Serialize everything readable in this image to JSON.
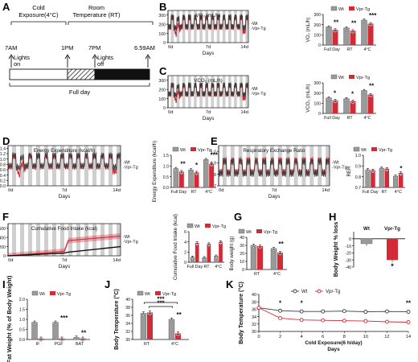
{
  "colors": {
    "wt": "#3b3b3b",
    "vpr": "#d42a36",
    "wt_bar": "#9a9a9a",
    "shade": "#cfcfcf"
  },
  "panel_letters": [
    "A",
    "B",
    "C",
    "D",
    "E",
    "F",
    "G",
    "H",
    "I",
    "J",
    "K"
  ],
  "schedule": {
    "header_cold": "Cold",
    "header_cold2": "Exposure(4°C)",
    "header_room": "Room",
    "header_room2": "Temperature  (RT)",
    "time_labels": [
      "7AM",
      "1PM",
      "7PM",
      "6.59AM"
    ],
    "lights_on": [
      "Lights",
      "on"
    ],
    "lights_off": [
      "Lights",
      "off"
    ],
    "full_day": "Full day"
  },
  "common": {
    "days_label": "Days",
    "day_ticks": [
      "0d",
      "7d",
      "14d"
    ],
    "legend_wt": "Wt",
    "legend_vpr": "Vpr-Tg",
    "trace_legend_wt": "-Wt",
    "trace_legend_vpr": "-Vpr-Tg"
  },
  "chart_data": [
    {
      "panel": "B",
      "type": "line",
      "title": "VO₂ (mL/h)",
      "xlabel": "Days",
      "x_ticks": [
        "0d",
        "7d",
        "14d"
      ],
      "y_ticks": [
        0,
        100,
        200,
        300
      ],
      "series_labels": [
        "-Wt",
        "-Vpr-Tg"
      ]
    },
    {
      "panel": "B",
      "type": "bar",
      "ylabel": "VO₂ (mL/h)",
      "categories": [
        "Full Day",
        "RT",
        "4°C"
      ],
      "ylim": [
        0,
        300
      ],
      "y_ticks": [
        0,
        100,
        200,
        300
      ],
      "series": [
        {
          "name": "Wt",
          "values": [
            178,
            168,
            245
          ]
        },
        {
          "name": "Vpr-Tg",
          "values": [
            150,
            140,
            210
          ]
        }
      ],
      "significance": [
        "**",
        "**",
        "***"
      ]
    },
    {
      "panel": "C",
      "type": "line",
      "title": "VCO₂ (mL/h)",
      "xlabel": "Days",
      "x_ticks": [
        "0d",
        "7d",
        "14d"
      ],
      "y_ticks": [
        0,
        100,
        200,
        300
      ],
      "series_labels": [
        "-Wt",
        "-Vpr-Tg"
      ]
    },
    {
      "panel": "C",
      "type": "bar",
      "ylabel": "VCO₂ (mL/h)",
      "categories": [
        "Full Day",
        "RT",
        "4°C"
      ],
      "ylim": [
        0,
        300
      ],
      "y_ticks": [
        0,
        100,
        200,
        300
      ],
      "series": [
        {
          "name": "Wt",
          "values": [
            152,
            145,
            225
          ]
        },
        {
          "name": "Vpr-Tg",
          "values": [
            128,
            120,
            185
          ]
        }
      ],
      "significance": [
        "*",
        "*",
        "**"
      ]
    },
    {
      "panel": "D",
      "type": "line",
      "title": "Energy Expenditure (kcal/h)",
      "xlabel": "Days",
      "x_ticks": [
        "0d",
        "7d",
        "14d"
      ],
      "y_ticks": [
        0.0,
        0.2,
        0.4,
        0.6,
        0.8,
        1.0,
        1.2,
        1.4
      ],
      "series_labels": [
        "-Wt",
        "-Vpr-Tg"
      ]
    },
    {
      "panel": "D",
      "type": "bar",
      "ylabel": "Energy Expenditure (kcal/h)",
      "categories": [
        "Full Day",
        "RT",
        "4°C"
      ],
      "ylim": [
        0,
        1.5
      ],
      "y_ticks": [
        0.0,
        0.5,
        1.0,
        1.5
      ],
      "series": [
        {
          "name": "Wt",
          "values": [
            0.88,
            0.82,
            1.3
          ]
        },
        {
          "name": "Vpr-Tg",
          "values": [
            0.74,
            0.7,
            1.1
          ]
        }
      ],
      "significance": [
        "**",
        "*",
        "***"
      ]
    },
    {
      "panel": "E",
      "type": "line",
      "title": "Respiratory  Exchange Ratio",
      "xlabel": "Days",
      "x_ticks": [
        "0d",
        "7d",
        "14d"
      ],
      "y_ticks": [
        0.7,
        0.8,
        0.9,
        1.0
      ],
      "series_labels": [
        "-Wt",
        "-Vpr-Tg"
      ]
    },
    {
      "panel": "E",
      "type": "bar",
      "ylabel": "RER",
      "categories": [
        "Full Day",
        "RT",
        "4°C"
      ],
      "ylim": [
        0.7,
        1.0
      ],
      "y_ticks": [
        0.7,
        0.8,
        0.9,
        1.0
      ],
      "series": [
        {
          "name": "Wt",
          "values": [
            0.865,
            0.88,
            0.805
          ]
        },
        {
          "name": "Vpr-Tg",
          "values": [
            0.86,
            0.875,
            0.835
          ]
        }
      ],
      "significance": [
        "",
        "",
        "*"
      ]
    },
    {
      "panel": "F",
      "type": "area",
      "title": "Cumulative Food Intake (kcal)",
      "xlabel": "Days",
      "x_ticks": [
        "0d",
        "7d",
        "14d"
      ],
      "y_ticks": [
        0,
        200,
        400,
        600
      ],
      "series_labels": [
        "-Wt",
        "-Vpr-Tg"
      ],
      "series": [
        {
          "x": [
            0,
            7,
            7.5,
            14
          ],
          "values": [
            0,
            60,
            80,
            200
          ]
        },
        {
          "x": [
            0,
            7,
            7.5,
            14
          ],
          "values": [
            0,
            100,
            330,
            430
          ]
        }
      ]
    },
    {
      "panel": "F",
      "type": "bar",
      "ylabel": "Cumulative Food Intake (kcal)",
      "categories": [
        "Full Day",
        "RT",
        "4°C"
      ],
      "ylim": [
        0,
        6
      ],
      "y_ticks": [
        0,
        2,
        4,
        6
      ],
      "series": [
        {
          "name": "Wt",
          "values": [
            1.0,
            0.9,
            1.2
          ]
        },
        {
          "name": "Vpr-Tg",
          "values": [
            3.8,
            3.6,
            4.0
          ]
        }
      ],
      "significance": [
        "",
        "",
        ""
      ]
    },
    {
      "panel": "G",
      "type": "bar",
      "ylabel": "Body weight (g)",
      "categories": [
        "RT",
        "4°C"
      ],
      "ylim": [
        0,
        40
      ],
      "y_ticks": [
        0,
        10,
        20,
        30,
        40
      ],
      "series": [
        {
          "name": "Wt",
          "values": [
            30,
            26
          ]
        },
        {
          "name": "Vpr-Tg",
          "values": [
            29,
            21
          ]
        }
      ],
      "significance": [
        "",
        "**"
      ]
    },
    {
      "panel": "H",
      "type": "bar",
      "ylabel": "Body Weight % loss",
      "categories": [
        "Wt",
        "Vpr-Tg"
      ],
      "ylim": [
        -40,
        10
      ],
      "y_ticks": [
        -40,
        -30,
        -20,
        -10,
        0,
        10
      ],
      "values": [
        -7,
        -30
      ],
      "significance": [
        "",
        "*"
      ]
    },
    {
      "panel": "I",
      "type": "bar",
      "ylabel": "Fat Weight (% of Body Weight)",
      "categories": [
        "IF",
        "PGF",
        "BAT"
      ],
      "ylim": [
        0,
        2.0
      ],
      "y_ticks": [
        0.0,
        0.5,
        1.0,
        1.5,
        2.0
      ],
      "series": [
        {
          "name": "Wt",
          "values": [
            0.85,
            0.85,
            0.1
          ]
        },
        {
          "name": "Vpr-Tg",
          "values": [
            0.05,
            0.05,
            0.05
          ]
        }
      ],
      "significance": [
        "",
        "***",
        "**"
      ]
    },
    {
      "panel": "J",
      "type": "bar",
      "ylabel": "Body Temperature (°C)",
      "categories": [
        "RT",
        "4°C"
      ],
      "ylim": [
        30,
        40
      ],
      "y_ticks": [
        30,
        32,
        34,
        36,
        38,
        40
      ],
      "series": [
        {
          "name": "Wt",
          "values": [
            36.5,
            35.0
          ]
        },
        {
          "name": "Vpr-Tg",
          "values": [
            36.7,
            31.5
          ]
        }
      ],
      "significance": [
        "",
        "**"
      ],
      "brackets": [
        "***",
        "***"
      ]
    },
    {
      "panel": "K",
      "type": "line",
      "ylabel": "Body Temperature (°C)",
      "xlabel": "Cold Exposure(6 h/day) Days",
      "x": [
        0,
        2,
        4,
        6,
        8,
        10,
        12,
        14
      ],
      "x_ticks": [
        0,
        2,
        4,
        6,
        8,
        10,
        12,
        14
      ],
      "ylim": [
        30,
        40
      ],
      "y_ticks": [
        30,
        32,
        34,
        36,
        38,
        40
      ],
      "series": [
        {
          "name": "Wt",
          "values": [
            36.4,
            35.6,
            35.4,
            35.4,
            35.5,
            35.3,
            35.4,
            35.3
          ]
        },
        {
          "name": "Vpr-Tg",
          "values": [
            36.4,
            33.6,
            33.1,
            33.0,
            32.9,
            32.8,
            32.6,
            32.5
          ]
        }
      ],
      "significance_days": [
        "*",
        "*",
        "**"
      ]
    }
  ]
}
